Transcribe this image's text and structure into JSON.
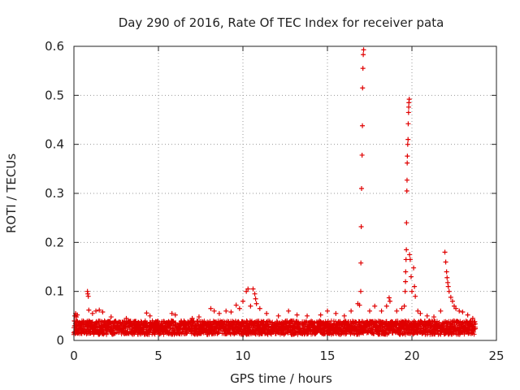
{
  "chart_data": {
    "type": "scatter",
    "title": "Day 290 of 2016, Rate Of TEC Index for receiver pata",
    "xlabel": "GPS time / hours",
    "ylabel": "ROTI / TECUs",
    "xlim": [
      0,
      25
    ],
    "ylim": [
      0,
      0.6
    ],
    "xticks": [
      0,
      5,
      10,
      15,
      20,
      25
    ],
    "yticks": [
      0,
      0.1,
      0.2,
      0.3,
      0.4,
      0.5,
      0.6
    ],
    "grid": true,
    "marker": "+",
    "marker_color": "#e00000",
    "baseline": {
      "x_range": [
        0.0,
        23.75
      ],
      "typical_min": 0.012,
      "typical_max": 0.04
    },
    "points": [
      [
        0.05,
        0.05
      ],
      [
        0.1,
        0.055
      ],
      [
        0.15,
        0.048
      ],
      [
        0.2,
        0.052
      ],
      [
        0.8,
        0.1
      ],
      [
        0.82,
        0.095
      ],
      [
        0.85,
        0.09
      ],
      [
        0.88,
        0.062
      ],
      [
        1.1,
        0.055
      ],
      [
        1.3,
        0.06
      ],
      [
        1.5,
        0.062
      ],
      [
        1.7,
        0.058
      ],
      [
        2.2,
        0.048
      ],
      [
        3.1,
        0.045
      ],
      [
        4.3,
        0.056
      ],
      [
        4.5,
        0.05
      ],
      [
        5.8,
        0.055
      ],
      [
        6.0,
        0.052
      ],
      [
        7.0,
        0.045
      ],
      [
        7.4,
        0.048
      ],
      [
        8.1,
        0.065
      ],
      [
        8.3,
        0.06
      ],
      [
        8.6,
        0.055
      ],
      [
        9.0,
        0.06
      ],
      [
        9.3,
        0.058
      ],
      [
        9.6,
        0.072
      ],
      [
        9.8,
        0.065
      ],
      [
        10.0,
        0.08
      ],
      [
        10.2,
        0.1
      ],
      [
        10.3,
        0.105
      ],
      [
        10.45,
        0.07
      ],
      [
        10.6,
        0.105
      ],
      [
        10.7,
        0.095
      ],
      [
        10.75,
        0.085
      ],
      [
        10.8,
        0.075
      ],
      [
        11.0,
        0.065
      ],
      [
        11.4,
        0.055
      ],
      [
        12.1,
        0.05
      ],
      [
        12.7,
        0.06
      ],
      [
        13.2,
        0.052
      ],
      [
        13.8,
        0.05
      ],
      [
        14.6,
        0.052
      ],
      [
        15.0,
        0.06
      ],
      [
        15.5,
        0.055
      ],
      [
        16.0,
        0.05
      ],
      [
        16.4,
        0.06
      ],
      [
        16.8,
        0.075
      ],
      [
        16.9,
        0.072
      ],
      [
        16.97,
        0.1
      ],
      [
        16.98,
        0.158
      ],
      [
        17.0,
        0.232
      ],
      [
        17.02,
        0.31
      ],
      [
        17.05,
        0.378
      ],
      [
        17.07,
        0.438
      ],
      [
        17.08,
        0.515
      ],
      [
        17.1,
        0.555
      ],
      [
        17.12,
        0.583
      ],
      [
        17.14,
        0.593
      ],
      [
        17.5,
        0.06
      ],
      [
        17.8,
        0.07
      ],
      [
        18.2,
        0.06
      ],
      [
        18.5,
        0.07
      ],
      [
        18.65,
        0.087
      ],
      [
        18.7,
        0.08
      ],
      [
        19.1,
        0.06
      ],
      [
        19.4,
        0.065
      ],
      [
        19.55,
        0.07
      ],
      [
        19.6,
        0.1
      ],
      [
        19.62,
        0.12
      ],
      [
        19.63,
        0.14
      ],
      [
        19.65,
        0.165
      ],
      [
        19.67,
        0.185
      ],
      [
        19.68,
        0.24
      ],
      [
        19.7,
        0.305
      ],
      [
        19.71,
        0.327
      ],
      [
        19.72,
        0.362
      ],
      [
        19.73,
        0.376
      ],
      [
        19.75,
        0.4
      ],
      [
        19.77,
        0.41
      ],
      [
        19.78,
        0.442
      ],
      [
        19.8,
        0.465
      ],
      [
        19.81,
        0.476
      ],
      [
        19.82,
        0.485
      ],
      [
        19.84,
        0.492
      ],
      [
        19.86,
        0.175
      ],
      [
        19.9,
        0.165
      ],
      [
        19.95,
        0.13
      ],
      [
        20.0,
        0.1
      ],
      [
        20.1,
        0.148
      ],
      [
        20.15,
        0.11
      ],
      [
        20.2,
        0.09
      ],
      [
        20.35,
        0.06
      ],
      [
        20.5,
        0.055
      ],
      [
        20.9,
        0.05
      ],
      [
        21.3,
        0.048
      ],
      [
        21.7,
        0.06
      ],
      [
        21.95,
        0.18
      ],
      [
        22.0,
        0.16
      ],
      [
        22.05,
        0.14
      ],
      [
        22.08,
        0.128
      ],
      [
        22.12,
        0.118
      ],
      [
        22.15,
        0.11
      ],
      [
        22.2,
        0.1
      ],
      [
        22.3,
        0.088
      ],
      [
        22.4,
        0.08
      ],
      [
        22.5,
        0.07
      ],
      [
        22.6,
        0.065
      ],
      [
        22.8,
        0.06
      ],
      [
        23.0,
        0.058
      ],
      [
        23.3,
        0.052
      ],
      [
        23.6,
        0.045
      ]
    ]
  }
}
